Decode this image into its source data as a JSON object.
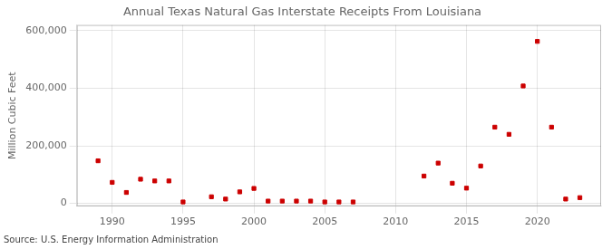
{
  "chart_data": {
    "type": "scatter",
    "title": "Annual Texas Natural Gas Interstate Receipts From Louisiana",
    "ylabel": "Million Cubic Feet",
    "source": "Source: U.S. Energy Information Administration",
    "x": [
      1989,
      1990,
      1991,
      1992,
      1993,
      1994,
      1995,
      1997,
      1998,
      1999,
      2000,
      2001,
      2002,
      2003,
      2004,
      2005,
      2006,
      2007,
      2012,
      2013,
      2014,
      2015,
      2016,
      2017,
      2018,
      2019,
      2020,
      2021,
      2022,
      2023
    ],
    "values": [
      148000,
      73000,
      38000,
      84000,
      78000,
      78000,
      5000,
      23000,
      15000,
      40000,
      52000,
      8000,
      8000,
      8000,
      8000,
      5000,
      5000,
      5000,
      95000,
      140000,
      70000,
      53000,
      130000,
      265000,
      240000,
      408000,
      563000,
      265000,
      15000,
      20000
    ],
    "color": "#cc0000",
    "marker": "square",
    "xlim": [
      1987.5,
      2024.5
    ],
    "xticks": [
      1990,
      1995,
      2000,
      2005,
      2010,
      2015,
      2020
    ],
    "ylim": [
      -10000,
      620000
    ],
    "yticks": [
      0,
      {
        "value": 200000,
        "label": "200,000"
      },
      {
        "value": 400000,
        "label": "400,000"
      },
      {
        "value": 600000,
        "label": "600,000"
      }
    ],
    "grid": true
  }
}
